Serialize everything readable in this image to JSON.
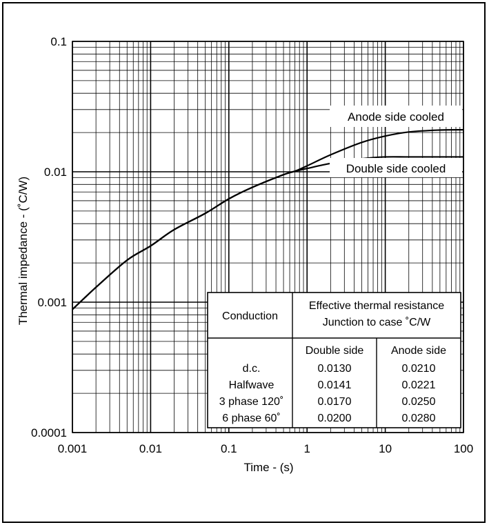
{
  "chart_data": {
    "type": "line",
    "xlabel": "Time - (s)",
    "ylabel": "Thermal impedance - (˚C/W)",
    "x_scale": "log",
    "y_scale": "log",
    "xlim": [
      0.001,
      100
    ],
    "ylim": [
      0.0001,
      0.1
    ],
    "grid": true,
    "x_ticks": [
      {
        "value": 0.001,
        "label": "0.001"
      },
      {
        "value": 0.01,
        "label": "0.01"
      },
      {
        "value": 0.1,
        "label": "0.1"
      },
      {
        "value": 1,
        "label": "1"
      },
      {
        "value": 10,
        "label": "10"
      },
      {
        "value": 100,
        "label": "100"
      }
    ],
    "y_ticks": [
      {
        "value": 0.0001,
        "label": "0.0001"
      },
      {
        "value": 0.001,
        "label": "0.001"
      },
      {
        "value": 0.01,
        "label": "0.01"
      },
      {
        "value": 0.1,
        "label": "0.1"
      }
    ],
    "series": [
      {
        "name": "Anode side cooled",
        "x": [
          0.001,
          0.002,
          0.005,
          0.01,
          0.02,
          0.05,
          0.1,
          0.2,
          0.5,
          0.7,
          1,
          2,
          5,
          10,
          20,
          50,
          100
        ],
        "y": [
          0.00088,
          0.0013,
          0.0021,
          0.0027,
          0.0036,
          0.0048,
          0.0062,
          0.0076,
          0.0095,
          0.0101,
          0.0111,
          0.0135,
          0.0168,
          0.0188,
          0.0202,
          0.0209,
          0.021
        ]
      },
      {
        "name": "Double side cooled",
        "x": [
          0.001,
          0.002,
          0.005,
          0.01,
          0.02,
          0.05,
          0.1,
          0.2,
          0.5,
          0.7,
          1,
          2,
          5,
          10,
          20,
          50,
          100
        ],
        "y": [
          0.00088,
          0.0013,
          0.0021,
          0.0027,
          0.0036,
          0.0048,
          0.0062,
          0.0076,
          0.0095,
          0.0101,
          0.0106,
          0.0116,
          0.0126,
          0.013,
          0.013,
          0.013,
          0.013
        ]
      }
    ],
    "table": {
      "header_left": "Conduction",
      "header_right_line1": "Effective thermal resistance",
      "header_right_line2": "Junction to case ˚C/W",
      "col_double": "Double side",
      "col_anode": "Anode side",
      "rows": [
        {
          "conduction": "d.c.",
          "double": "0.0130",
          "anode": "0.0210"
        },
        {
          "conduction": "Halfwave",
          "double": "0.0141",
          "anode": "0.0221"
        },
        {
          "conduction": "3 phase 120˚",
          "double": "0.0170",
          "anode": "0.0250"
        },
        {
          "conduction": "6 phase 60˚",
          "double": "0.0200",
          "anode": "0.0280"
        }
      ]
    }
  }
}
